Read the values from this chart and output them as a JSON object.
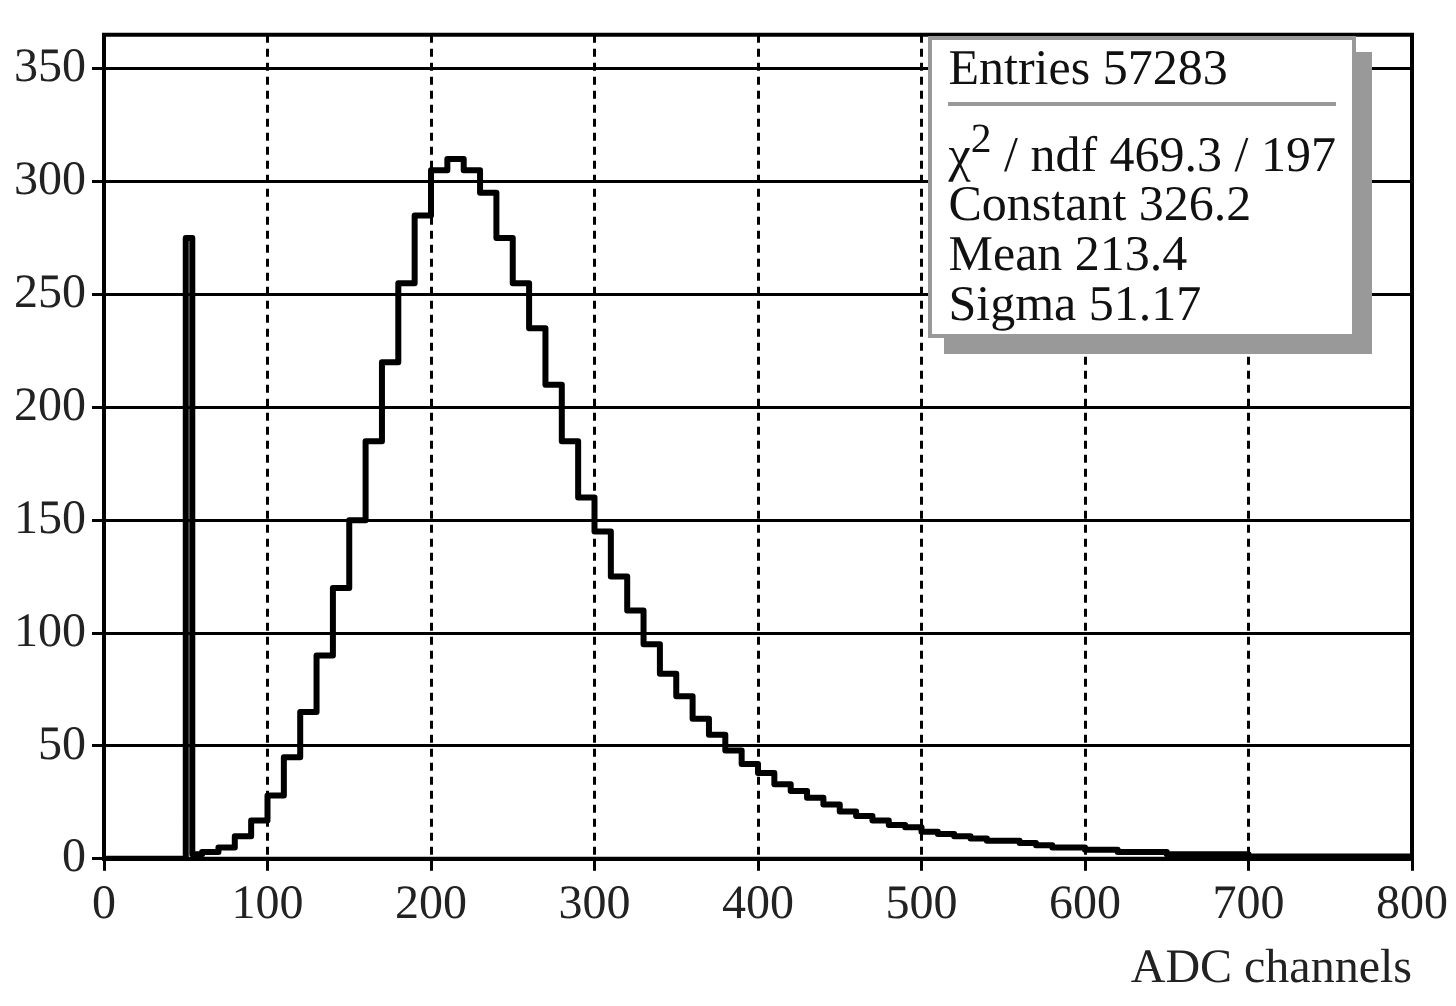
{
  "chart_data": {
    "type": "histogram",
    "xlabel": "ADC channels",
    "bins": [
      0,
      50,
      54,
      60,
      70,
      80,
      90,
      100,
      110,
      120,
      130,
      140,
      150,
      160,
      170,
      180,
      190,
      200,
      210,
      220,
      230,
      240,
      250,
      260,
      270,
      280,
      290,
      300,
      310,
      320,
      330,
      340,
      350,
      360,
      370,
      380,
      390,
      400,
      410,
      420,
      430,
      440,
      450,
      460,
      470,
      480,
      490,
      500,
      510,
      520,
      530,
      540,
      550,
      560,
      570,
      580,
      590,
      600,
      610,
      620,
      630,
      640,
      650,
      660,
      670,
      680,
      690,
      700,
      710,
      720,
      730,
      740,
      750,
      760,
      770,
      780,
      790,
      800
    ],
    "values": [
      0,
      275,
      2,
      3,
      5,
      10,
      17,
      28,
      45,
      65,
      90,
      120,
      150,
      185,
      220,
      255,
      285,
      305,
      310,
      305,
      295,
      275,
      255,
      235,
      210,
      185,
      160,
      145,
      125,
      110,
      95,
      82,
      72,
      62,
      55,
      48,
      42,
      38,
      33,
      30,
      27,
      24,
      21,
      19,
      17,
      15,
      14,
      12,
      11,
      10,
      9,
      8,
      8,
      7,
      6,
      5,
      5,
      4,
      4,
      3,
      3,
      3,
      2,
      2,
      2,
      2,
      2,
      1,
      1,
      1,
      1,
      1,
      1,
      1,
      1,
      1,
      1
    ],
    "color": "#000000",
    "xlim": [
      0,
      800
    ],
    "xticks": [
      0,
      100,
      200,
      300,
      400,
      500,
      600,
      700,
      800
    ],
    "ylim": [
      0,
      365
    ],
    "yticks": [
      0,
      50,
      100,
      150,
      200,
      250,
      300,
      350
    ],
    "grid": true,
    "annotations": [
      "Entries 57283",
      "χ$^{2}$ / ndf 469.3 / 197",
      "Constant 326.2",
      "Mean 213.4",
      "Sigma 51.17"
    ]
  }
}
